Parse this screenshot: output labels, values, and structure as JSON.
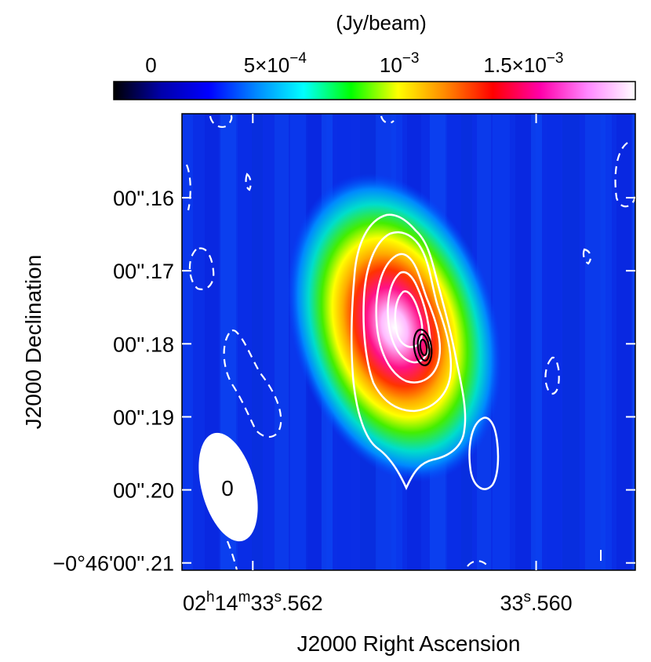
{
  "chart_data": {
    "type": "heatmap",
    "title": "",
    "colorbar": {
      "label": "(Jy/beam)",
      "ticks": [
        {
          "value": 0,
          "text": "0"
        },
        {
          "value": 0.0005,
          "text": "5×10",
          "exp": "−4"
        },
        {
          "value": 0.001,
          "text": "10",
          "exp": "−3"
        },
        {
          "value": 0.0015,
          "text": "1.5×10",
          "exp": "−3"
        }
      ],
      "range": [
        -0.00015,
        0.00195
      ],
      "colormap": [
        "#000000",
        "#0000aa",
        "#0000ff",
        "#0088ff",
        "#00ffff",
        "#00ff00",
        "#ffff00",
        "#ff8800",
        "#ff0000",
        "#ff00aa",
        "#ff88ff",
        "#ffffff"
      ]
    },
    "xlabel": "J2000 Right Ascension",
    "ylabel": "J2000 Declination",
    "x_ticks": [
      {
        "value": 33.562,
        "text_parts": [
          "02",
          "h",
          "14",
          "m",
          "33",
          "s",
          ".562"
        ]
      },
      {
        "value": 33.56,
        "text_parts": [
          "33",
          "s",
          ".560"
        ]
      }
    ],
    "y_ticks": [
      {
        "value": 0.16,
        "text": "00''.16"
      },
      {
        "value": 0.17,
        "text": "00''.17"
      },
      {
        "value": 0.18,
        "text": "00''.18"
      },
      {
        "value": 0.19,
        "text": "00''.19"
      },
      {
        "value": 0.2,
        "text": "00''.20"
      },
      {
        "value": 0.21,
        "text": "−0°46'00''.21"
      }
    ],
    "xlim_seconds": [
      33.5625,
      33.5593
    ],
    "ylim_arcsec": [
      0.211,
      0.1485
    ],
    "source": {
      "ra_seconds": 33.561,
      "dec_arcsec": 0.1778,
      "peak_jy_per_beam": 0.00185,
      "major_axis_arcsec": 0.0135,
      "minor_axis_arcsec": 0.009,
      "tilt_deg_from_north": -16
    },
    "compact_source": {
      "ra_seconds": 33.5609,
      "dec_arcsec": 0.1812,
      "n_contours": 3,
      "color": "#000000"
    },
    "contours_white": {
      "color": "#ffffff",
      "style_positive": "solid",
      "style_negative": "dashed"
    },
    "beam": {
      "label": "0",
      "fill": "#ffffff",
      "tilt_deg": -15,
      "location": "bottom-left"
    },
    "grid": false,
    "tick_marks_color_inside_frame": "#ffffff"
  }
}
